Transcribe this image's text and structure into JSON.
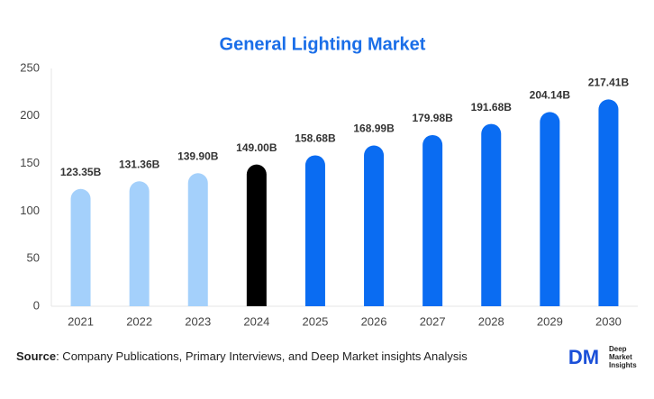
{
  "chart_data": {
    "type": "bar",
    "title": "General Lighting Market",
    "categories": [
      "2021",
      "2022",
      "2023",
      "2024",
      "2025",
      "2026",
      "2027",
      "2028",
      "2029",
      "2030"
    ],
    "values": [
      123.35,
      131.36,
      139.9,
      149.0,
      158.68,
      168.99,
      179.98,
      191.68,
      204.14,
      217.41
    ],
    "value_labels": [
      "123.35B",
      "131.36B",
      "139.90B",
      "149.00B",
      "158.68B",
      "168.99B",
      "179.98B",
      "191.68B",
      "204.14B",
      "217.41B"
    ],
    "colors": [
      "#a4d0fb",
      "#a4d0fb",
      "#a4d0fb",
      "#000000",
      "#0a6cf2",
      "#0a6cf2",
      "#0a6cf2",
      "#0a6cf2",
      "#0a6cf2",
      "#0a6cf2"
    ],
    "ylim": [
      0,
      250
    ],
    "yticks": [
      0,
      50,
      100,
      150,
      200,
      250
    ],
    "grid": false
  },
  "footer": {
    "source_label": "Source",
    "source_text": ": Company Publications, Primary Interviews, and Deep Market insights Analysis"
  },
  "logo": {
    "mark": "DM",
    "lines": [
      "Deep",
      "Market",
      "Insights"
    ]
  }
}
